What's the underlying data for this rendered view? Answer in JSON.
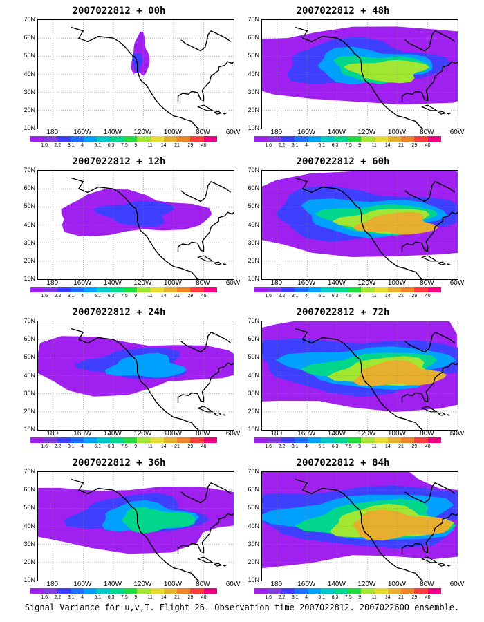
{
  "caption": "Signal Variance for u,v,T. Flight 26. Observation time 2007022812. 2007022600 ensemble.",
  "latitude_labels": [
    "70N",
    "60N",
    "50N",
    "40N",
    "30N",
    "20N",
    "10N"
  ],
  "longitude_labels": [
    "180",
    "160W",
    "140W",
    "120W",
    "100W",
    "80W",
    "60W"
  ],
  "colorbar": {
    "labels": [
      "1.6",
      "2.2",
      "3.1",
      "4",
      "5.1",
      "6.3",
      "7.5",
      "9",
      "11",
      "14",
      "21",
      "29",
      "40"
    ],
    "colors": [
      "#a020f0",
      "#7f3fe0",
      "#3f3fff",
      "#1e6fff",
      "#00a0ff",
      "#00c8c8",
      "#00d78c",
      "#1edc3c",
      "#a0e632",
      "#e6dc32",
      "#e6af2d",
      "#f08228",
      "#fa3c3c",
      "#f00082"
    ]
  },
  "panels": [
    {
      "title": "2007022812 + 00h",
      "intensity": 0
    },
    {
      "title": "2007022812 + 12h",
      "intensity": 1
    },
    {
      "title": "2007022812 + 24h",
      "intensity": 2
    },
    {
      "title": "2007022812 + 36h",
      "intensity": 3
    },
    {
      "title": "2007022812 + 48h",
      "intensity": 4
    },
    {
      "title": "2007022812 + 60h",
      "intensity": 5
    },
    {
      "title": "2007022812 + 72h",
      "intensity": 6
    },
    {
      "title": "2007022812 + 84h",
      "intensity": 7
    }
  ]
}
